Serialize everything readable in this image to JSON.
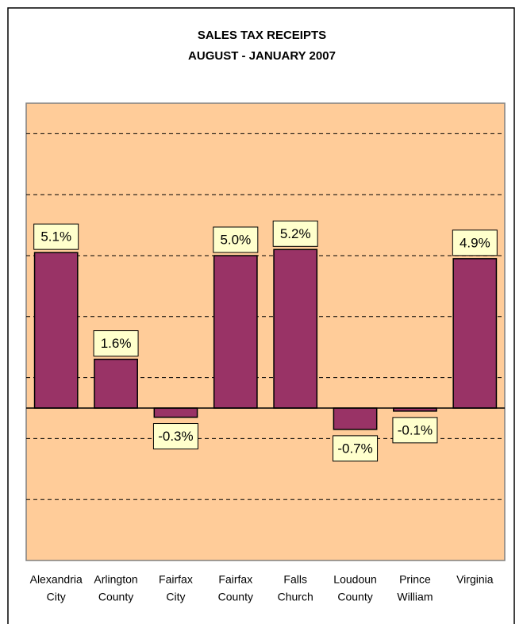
{
  "chart_data": {
    "type": "bar",
    "title": "SALES TAX RECEIPTS",
    "subtitle": "AUGUST - JANUARY 2007",
    "categories": [
      [
        "Alexandria",
        "City"
      ],
      [
        "Arlington",
        "County"
      ],
      [
        "Fairfax",
        "City"
      ],
      [
        "Fairfax",
        "County"
      ],
      [
        "Falls",
        "Church"
      ],
      [
        "Loudoun",
        "County"
      ],
      [
        "Prince",
        "William"
      ],
      [
        "Virginia"
      ]
    ],
    "values": [
      5.1,
      1.6,
      -0.3,
      5.0,
      5.2,
      -0.7,
      -0.1,
      4.9
    ],
    "value_labels": [
      "5.1%",
      "1.6%",
      "-0.3%",
      "5.0%",
      "5.2%",
      "-0.7%",
      "-0.1%",
      "4.9%"
    ],
    "color": "#993366",
    "ylim": [
      -5,
      10
    ],
    "yticks": [
      -3,
      -1,
      1,
      3,
      5,
      7,
      9
    ],
    "grid": true
  }
}
